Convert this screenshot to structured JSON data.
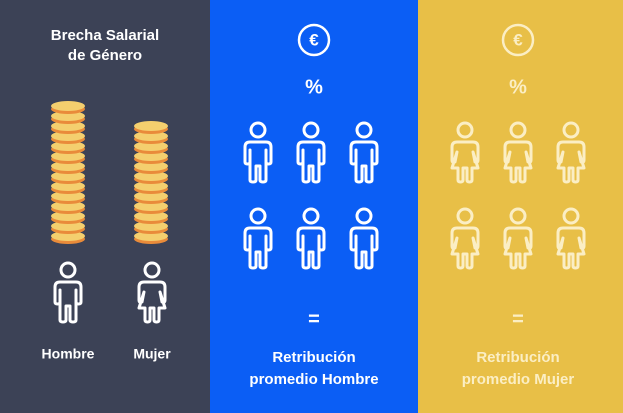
{
  "intro": {
    "title_lines": [
      "Brecha Salarial",
      "de Género"
    ],
    "labels": [
      "Hombre",
      "Mujer"
    ]
  },
  "men_panel": {
    "symbol": "€",
    "percent": "%",
    "equals": "=",
    "caption_lines": [
      "Retribución",
      "promedio Hombre"
    ]
  },
  "women_panel": {
    "symbol": "€",
    "percent": "%",
    "equals": "=",
    "caption_lines": [
      "Retribución",
      "promedio Mujer"
    ]
  }
}
